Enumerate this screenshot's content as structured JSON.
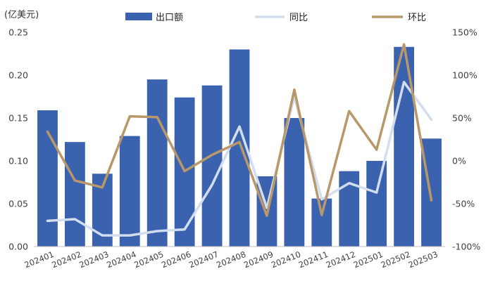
{
  "chart_data": {
    "type": "bar+line",
    "unit_label": "(亿美元)",
    "categories": [
      "202401",
      "202402",
      "202403",
      "202404",
      "202405",
      "202406",
      "202407",
      "202408",
      "202409",
      "202410",
      "202411",
      "202412",
      "202501",
      "202502",
      "202503"
    ],
    "bar_series": {
      "name": "出口额",
      "color": "#3b62ae",
      "values": [
        0.159,
        0.122,
        0.085,
        0.129,
        0.195,
        0.174,
        0.188,
        0.23,
        0.082,
        0.15,
        0.056,
        0.088,
        0.1,
        0.233,
        0.126
      ]
    },
    "line_series": [
      {
        "name": "同比",
        "color": "#d2deef",
        "axis": "right",
        "values": [
          -70,
          -68,
          -87,
          -87,
          -82,
          -80,
          -28,
          40,
          -55,
          75,
          -45,
          -26,
          -37,
          92,
          48
        ]
      },
      {
        "name": "环比",
        "color": "#b8986a",
        "axis": "right",
        "values": [
          34,
          -23,
          -31,
          52,
          51,
          -12,
          7,
          22,
          -64,
          83,
          -63,
          58,
          13,
          136,
          -46
        ]
      }
    ],
    "left_axis": {
      "min": 0,
      "max": 0.25,
      "ticks": [
        "0.00",
        "0.05",
        "0.10",
        "0.15",
        "0.20",
        "0.25"
      ]
    },
    "right_axis": {
      "min": -100,
      "max": 150,
      "ticks": [
        "-100%",
        "-50%",
        "0%",
        "50%",
        "100%",
        "150%"
      ]
    },
    "legend": {
      "position": "top",
      "items": [
        "出口额",
        "同比",
        "环比"
      ]
    },
    "grid": false
  }
}
